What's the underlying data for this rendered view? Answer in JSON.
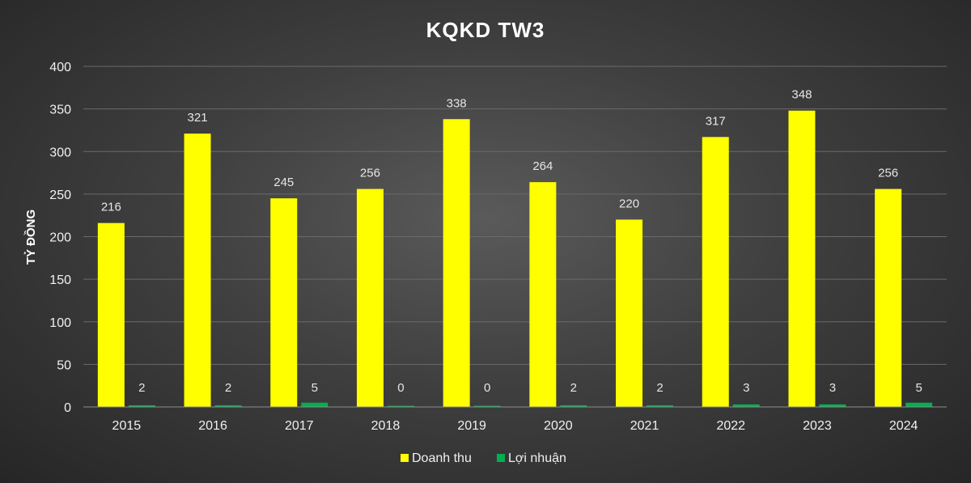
{
  "chart_data": {
    "type": "bar",
    "title": "KQKD TW3",
    "xlabel": "",
    "ylabel": "TỶ ĐỒNG",
    "ylim": [
      0,
      400
    ],
    "yticks": [
      0,
      50,
      100,
      150,
      200,
      250,
      300,
      350,
      400
    ],
    "grid": true,
    "legend_position": "bottom",
    "categories": [
      "2015",
      "2016",
      "2017",
      "2018",
      "2019",
      "2020",
      "2021",
      "2022",
      "2023",
      "2024"
    ],
    "series": [
      {
        "name": "Doanh thu",
        "color": "#FFFF00",
        "values": [
          216,
          321,
          245,
          256,
          338,
          264,
          220,
          317,
          348,
          256
        ]
      },
      {
        "name": "Lợi nhuận",
        "color": "#00B050",
        "values": [
          2,
          2,
          5,
          0,
          0,
          2,
          2,
          3,
          3,
          5
        ]
      }
    ]
  }
}
